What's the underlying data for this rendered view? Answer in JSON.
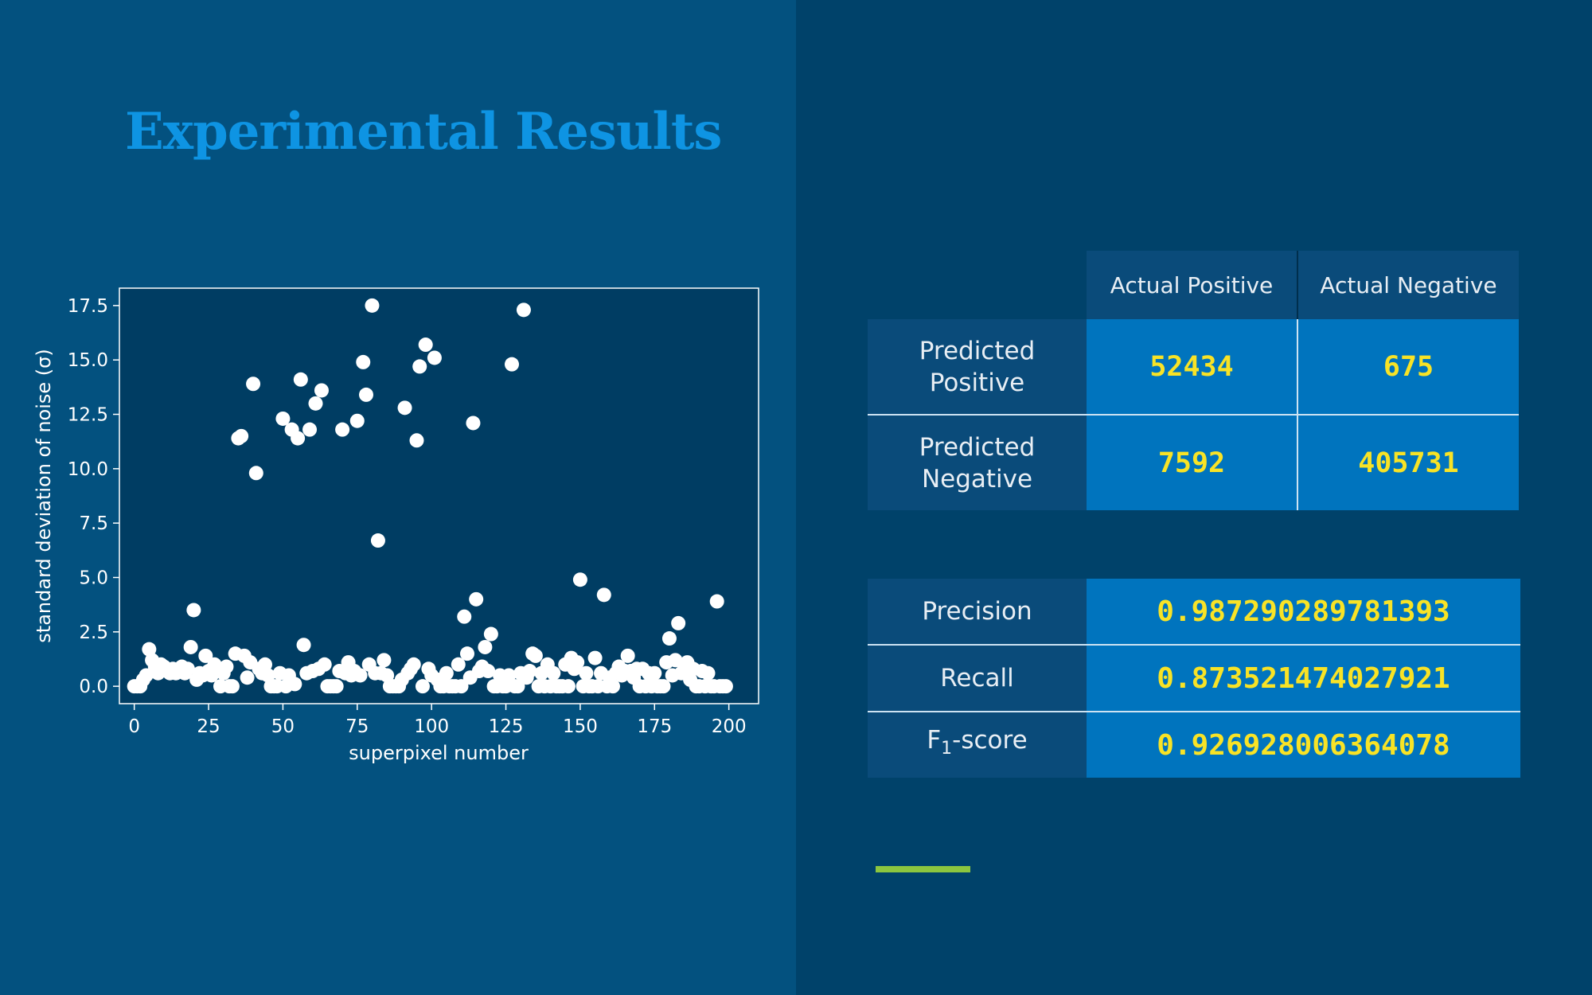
{
  "title": "Experimental Results",
  "colors": {
    "left_bg": "#03517f",
    "right_bg": "#00426a",
    "title": "#0e94e3",
    "value_text": "#f8e326",
    "cell_bg": "#0074be",
    "label_bg": "#0a4b7a",
    "accent": "#8cc63f"
  },
  "chart_data": {
    "type": "scatter",
    "xlabel": "superpixel number",
    "ylabel": "standard deviation of noise (σ)",
    "xlim": [
      -5,
      210
    ],
    "ylim": [
      -0.8,
      18.3
    ],
    "xticks": [
      0,
      25,
      50,
      75,
      100,
      125,
      150,
      175,
      200
    ],
    "yticks": [
      0.0,
      2.5,
      5.0,
      7.5,
      10.0,
      12.5,
      15.0,
      17.5
    ],
    "xtick_labels": [
      "0",
      "25",
      "50",
      "75",
      "100",
      "125",
      "150",
      "175",
      "200"
    ],
    "ytick_labels": [
      "0.0",
      "2.5",
      "5.0",
      "7.5",
      "10.0",
      "12.5",
      "15.0",
      "17.5"
    ],
    "grid": false,
    "point_color": "#ffffff",
    "points": [
      [
        0,
        0.0
      ],
      [
        1,
        0.0
      ],
      [
        2,
        0.0
      ],
      [
        3,
        0.3
      ],
      [
        4,
        0.5
      ],
      [
        5,
        1.7
      ],
      [
        6,
        1.2
      ],
      [
        7,
        0.9
      ],
      [
        8,
        0.6
      ],
      [
        9,
        1.0
      ],
      [
        10,
        0.9
      ],
      [
        11,
        0.7
      ],
      [
        12,
        0.6
      ],
      [
        13,
        0.8
      ],
      [
        14,
        0.6
      ],
      [
        15,
        0.7
      ],
      [
        16,
        0.9
      ],
      [
        17,
        0.6
      ],
      [
        18,
        0.8
      ],
      [
        19,
        1.8
      ],
      [
        20,
        3.5
      ],
      [
        21,
        0.3
      ],
      [
        22,
        0.6
      ],
      [
        23,
        0.5
      ],
      [
        24,
        1.4
      ],
      [
        25,
        0.7
      ],
      [
        26,
        0.5
      ],
      [
        27,
        1.0
      ],
      [
        28,
        0.8
      ],
      [
        29,
        0.0
      ],
      [
        30,
        0.6
      ],
      [
        31,
        0.9
      ],
      [
        32,
        0.0
      ],
      [
        33,
        0.0
      ],
      [
        34,
        1.5
      ],
      [
        35,
        11.4
      ],
      [
        36,
        11.5
      ],
      [
        37,
        1.4
      ],
      [
        38,
        0.4
      ],
      [
        39,
        1.1
      ],
      [
        40,
        13.9
      ],
      [
        41,
        9.8
      ],
      [
        42,
        0.8
      ],
      [
        43,
        0.6
      ],
      [
        44,
        1.0
      ],
      [
        45,
        0.5
      ],
      [
        46,
        0.0
      ],
      [
        47,
        0.0
      ],
      [
        48,
        0.0
      ],
      [
        49,
        0.6
      ],
      [
        50,
        12.3
      ],
      [
        51,
        0.0
      ],
      [
        52,
        0.5
      ],
      [
        53,
        11.8
      ],
      [
        54,
        0.1
      ],
      [
        55,
        11.4
      ],
      [
        56,
        14.1
      ],
      [
        57,
        1.9
      ],
      [
        58,
        0.6
      ],
      [
        59,
        11.8
      ],
      [
        60,
        0.7
      ],
      [
        61,
        13.0
      ],
      [
        62,
        0.8
      ],
      [
        63,
        13.6
      ],
      [
        64,
        1.0
      ],
      [
        65,
        0.0
      ],
      [
        66,
        0.0
      ],
      [
        67,
        0.0
      ],
      [
        68,
        0.0
      ],
      [
        69,
        0.7
      ],
      [
        70,
        11.8
      ],
      [
        71,
        0.6
      ],
      [
        72,
        1.1
      ],
      [
        73,
        0.5
      ],
      [
        74,
        0.7
      ],
      [
        75,
        12.2
      ],
      [
        76,
        0.5
      ],
      [
        77,
        14.9
      ],
      [
        78,
        13.4
      ],
      [
        79,
        1.0
      ],
      [
        80,
        17.5
      ],
      [
        81,
        0.6
      ],
      [
        82,
        6.7
      ],
      [
        83,
        0.6
      ],
      [
        84,
        1.2
      ],
      [
        85,
        0.5
      ],
      [
        86,
        0.0
      ],
      [
        87,
        0.0
      ],
      [
        88,
        0.0
      ],
      [
        89,
        0.0
      ],
      [
        90,
        0.3
      ],
      [
        91,
        12.8
      ],
      [
        92,
        0.6
      ],
      [
        93,
        0.8
      ],
      [
        94,
        1.0
      ],
      [
        95,
        11.3
      ],
      [
        96,
        14.7
      ],
      [
        97,
        0.0
      ],
      [
        98,
        15.7
      ],
      [
        99,
        0.8
      ],
      [
        100,
        0.5
      ],
      [
        101,
        15.1
      ],
      [
        102,
        0.3
      ],
      [
        103,
        0.0
      ],
      [
        104,
        0.0
      ],
      [
        105,
        0.6
      ],
      [
        106,
        0.0
      ],
      [
        107,
        0.0
      ],
      [
        108,
        0.0
      ],
      [
        109,
        1.0
      ],
      [
        110,
        0.0
      ],
      [
        111,
        3.2
      ],
      [
        112,
        1.5
      ],
      [
        113,
        0.4
      ],
      [
        114,
        12.1
      ],
      [
        115,
        4.0
      ],
      [
        116,
        0.7
      ],
      [
        117,
        0.9
      ],
      [
        118,
        1.8
      ],
      [
        119,
        0.7
      ],
      [
        120,
        2.4
      ],
      [
        121,
        0.0
      ],
      [
        122,
        0.0
      ],
      [
        123,
        0.5
      ],
      [
        124,
        0.0
      ],
      [
        125,
        0.0
      ],
      [
        126,
        0.5
      ],
      [
        127,
        14.8
      ],
      [
        128,
        0.0
      ],
      [
        129,
        0.0
      ],
      [
        130,
        0.6
      ],
      [
        131,
        17.3
      ],
      [
        132,
        0.4
      ],
      [
        133,
        0.7
      ],
      [
        134,
        1.5
      ],
      [
        135,
        1.4
      ],
      [
        136,
        0.0
      ],
      [
        137,
        0.6
      ],
      [
        138,
        0.0
      ],
      [
        139,
        1.0
      ],
      [
        140,
        0.0
      ],
      [
        141,
        0.6
      ],
      [
        142,
        0.0
      ],
      [
        143,
        0.0
      ],
      [
        144,
        0.0
      ],
      [
        145,
        1.0
      ],
      [
        146,
        0.0
      ],
      [
        147,
        1.3
      ],
      [
        148,
        0.8
      ],
      [
        149,
        1.1
      ],
      [
        150,
        4.9
      ],
      [
        151,
        0.0
      ],
      [
        152,
        0.6
      ],
      [
        153,
        0.0
      ],
      [
        154,
        0.0
      ],
      [
        155,
        1.3
      ],
      [
        156,
        0.0
      ],
      [
        157,
        0.6
      ],
      [
        158,
        4.2
      ],
      [
        159,
        0.0
      ],
      [
        160,
        0.4
      ],
      [
        161,
        0.0
      ],
      [
        162,
        0.6
      ],
      [
        163,
        0.9
      ],
      [
        164,
        0.5
      ],
      [
        165,
        0.7
      ],
      [
        166,
        1.4
      ],
      [
        167,
        0.7
      ],
      [
        168,
        0.4
      ],
      [
        169,
        0.8
      ],
      [
        170,
        0.0
      ],
      [
        171,
        0.8
      ],
      [
        172,
        0.0
      ],
      [
        173,
        0.6
      ],
      [
        174,
        0.0
      ],
      [
        175,
        0.6
      ],
      [
        176,
        0.0
      ],
      [
        177,
        0.0
      ],
      [
        178,
        0.0
      ],
      [
        179,
        1.1
      ],
      [
        180,
        2.2
      ],
      [
        181,
        0.5
      ],
      [
        182,
        1.2
      ],
      [
        183,
        2.9
      ],
      [
        184,
        0.6
      ],
      [
        185,
        0.8
      ],
      [
        186,
        1.1
      ],
      [
        187,
        0.3
      ],
      [
        188,
        0.8
      ],
      [
        189,
        0.0
      ],
      [
        190,
        0.0
      ],
      [
        191,
        0.7
      ],
      [
        192,
        0.0
      ],
      [
        193,
        0.6
      ],
      [
        194,
        0.0
      ],
      [
        195,
        0.0
      ],
      [
        196,
        3.9
      ],
      [
        197,
        0.0
      ],
      [
        198,
        0.0
      ],
      [
        199,
        0.0
      ]
    ]
  },
  "confusion_table": {
    "col_headers": [
      "Actual Positive",
      "Actual Negative"
    ],
    "rows": [
      {
        "label_line1": "Predicted",
        "label_line2": "Positive",
        "values": [
          "52434",
          "675"
        ]
      },
      {
        "label_line1": "Predicted",
        "label_line2": "Negative",
        "values": [
          "7592",
          "405731"
        ]
      }
    ]
  },
  "metrics": [
    {
      "label": "Precision",
      "value": "0.987290289781393"
    },
    {
      "label": "Recall",
      "value": "0.873521474027921"
    },
    {
      "label_main": "F",
      "label_sub": "1",
      "label_rest": "-score",
      "value": "0.926928006364078"
    }
  ]
}
